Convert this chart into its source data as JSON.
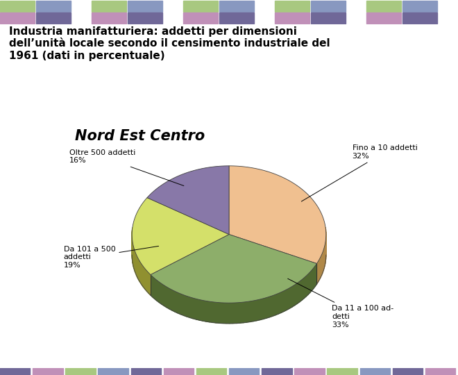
{
  "title": "Industria manifatturiera: addetti per dimensioni\ndell’unità locale secondo il censimento industriale del\n1961 (dati in percentuale)",
  "slices": [
    32,
    33,
    19,
    16
  ],
  "slice_labels": [
    "Fino a 10 addetti\n32%",
    "Da 11 a 100 ad-\ndetti\n33%",
    "Da 101 a 500\naddetti\n19%",
    "Oltre 500 addetti\n16%"
  ],
  "colors": [
    "#F0C090",
    "#8DAE6A",
    "#D4E06A",
    "#8878A8"
  ],
  "dark_colors": [
    "#B08848",
    "#506830",
    "#909030",
    "#504868"
  ],
  "startangle": 90,
  "center_label": "Nord Est Centro",
  "background_color": "#FFFFFF",
  "header_tile_colors": [
    "#A8C880",
    "#8898C0",
    "#C090B8",
    "#706898"
  ],
  "footer_stripe_colors": [
    "#706898",
    "#C090B8",
    "#A8C880",
    "#8898C0"
  ],
  "label_fontsize": 8,
  "title_fontsize": 11
}
